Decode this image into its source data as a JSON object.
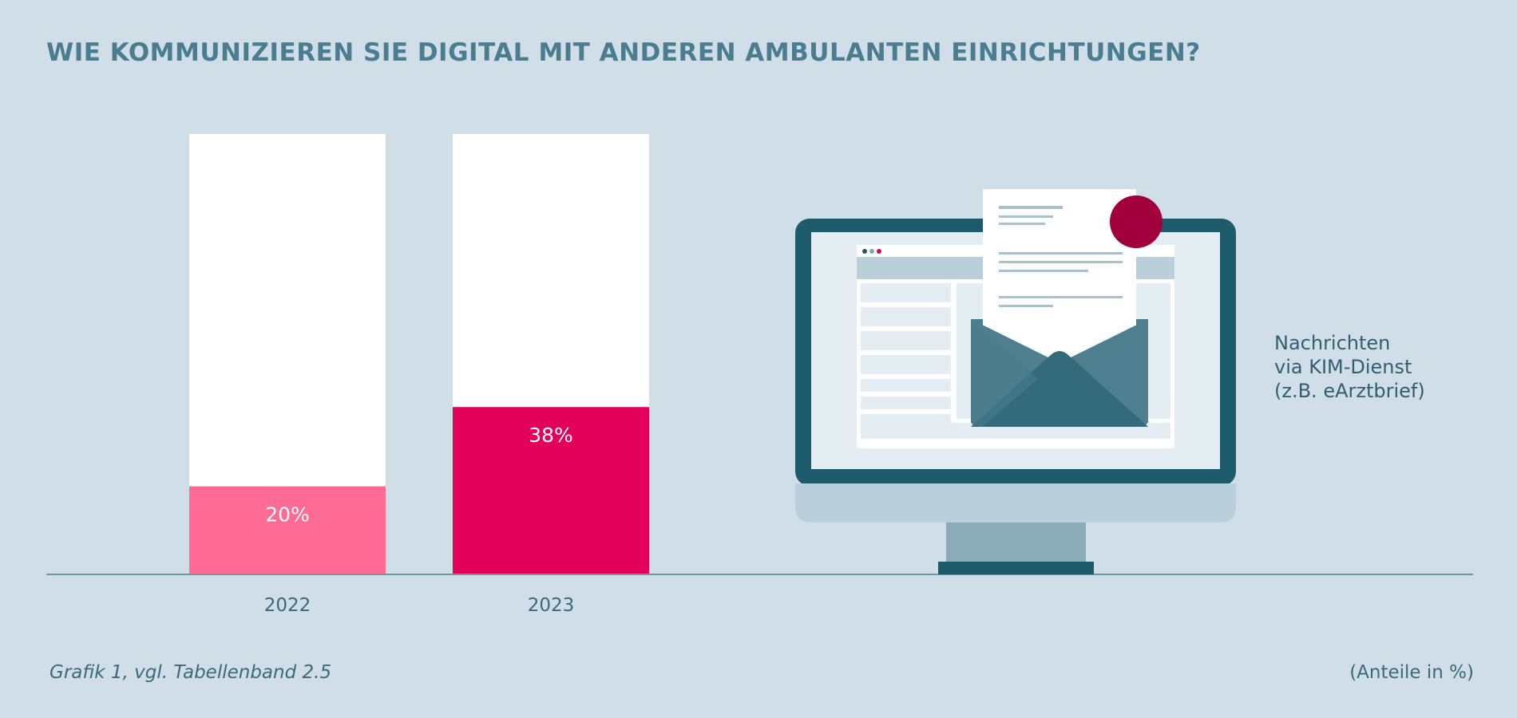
{
  "chart_data": {
    "type": "bar",
    "title": "WIE KOMMUNIZIEREN SIE DIGITAL MIT ANDEREN AMBULANTEN EINRICHTUNGEN?",
    "categories": [
      "2022",
      "2023"
    ],
    "values": [
      20,
      38
    ],
    "value_labels": [
      "20%",
      "38%"
    ],
    "ylim": [
      0,
      100
    ],
    "bar_colors": [
      "#ff6b95",
      "#e2005a"
    ],
    "background_bar_color": "#ffffff",
    "grid": false,
    "annotation": [
      "Nachrichten",
      "via KIM-Dienst",
      "(z.B. eArztbrief)"
    ],
    "source": "Grafik 1, vgl. Tabellenband 2.5",
    "unit_note": "(Anteile in %)"
  },
  "colors": {
    "background": "#d0dfe7",
    "baseline": "#6f98a7",
    "title": "#4a7d8f"
  },
  "illustration": {
    "icon": "computer-monitor-with-envelope-icon"
  }
}
